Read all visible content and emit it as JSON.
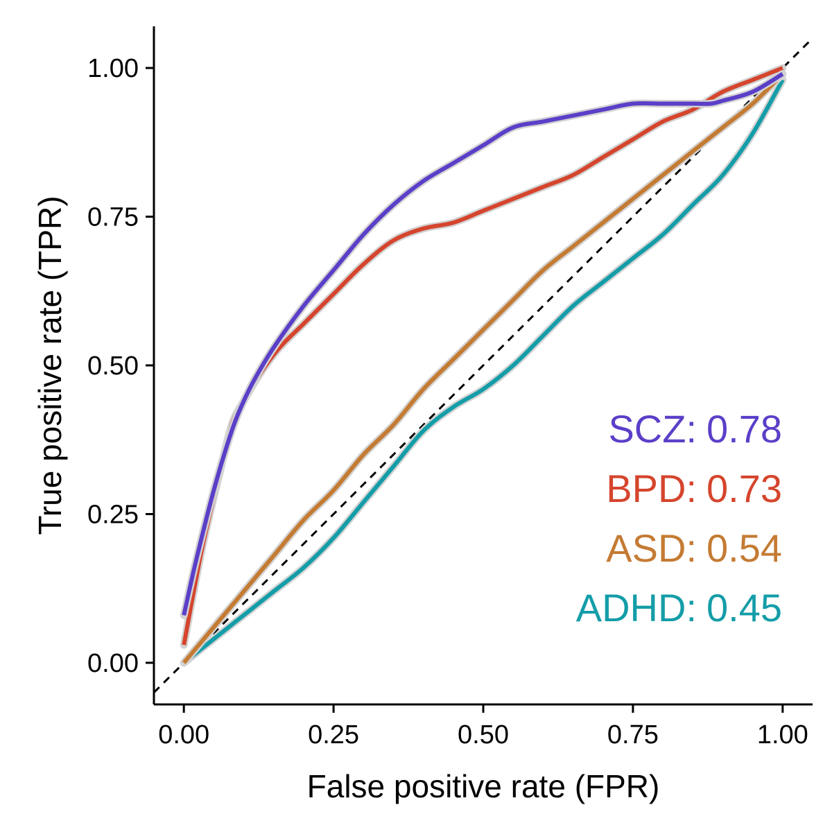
{
  "chart_data": {
    "type": "line",
    "xlabel": "False positive rate (FPR)",
    "ylabel": "True positive rate (TPR)",
    "xlim": [
      -0.05,
      1.05
    ],
    "ylim": [
      -0.07,
      1.07
    ],
    "x_ticks": [
      0,
      0.25,
      0.5,
      0.75,
      1
    ],
    "x_tick_labels": [
      "0.00",
      "0.25",
      "0.50",
      "0.75",
      "1.00"
    ],
    "y_ticks": [
      0,
      0.25,
      0.5,
      0.75,
      1
    ],
    "y_tick_labels": [
      "0.00",
      "0.25",
      "0.50",
      "0.75",
      "1.00"
    ],
    "grid": false,
    "reference_line": {
      "style": "dashed",
      "color": "#000000",
      "from": [
        -0.05,
        -0.05
      ],
      "to": [
        1.05,
        1.05
      ]
    },
    "legend_placement": "bottom-right",
    "series": [
      {
        "name": "SCZ",
        "auc_label": "0.78",
        "color": "#5B3FC8",
        "x": [
          0.0,
          0.02,
          0.05,
          0.08,
          0.1,
          0.12,
          0.15,
          0.2,
          0.25,
          0.3,
          0.35,
          0.4,
          0.45,
          0.5,
          0.55,
          0.6,
          0.65,
          0.7,
          0.75,
          0.8,
          0.85,
          0.88,
          0.9,
          0.95,
          1.0
        ],
        "y": [
          0.08,
          0.17,
          0.29,
          0.39,
          0.44,
          0.48,
          0.53,
          0.6,
          0.66,
          0.72,
          0.77,
          0.81,
          0.84,
          0.87,
          0.9,
          0.91,
          0.92,
          0.93,
          0.94,
          0.94,
          0.94,
          0.94,
          0.945,
          0.96,
          0.99
        ]
      },
      {
        "name": "BPD",
        "auc_label": "0.73",
        "color": "#D5452D",
        "x": [
          0.0,
          0.03,
          0.06,
          0.08,
          0.1,
          0.13,
          0.16,
          0.2,
          0.25,
          0.3,
          0.35,
          0.4,
          0.45,
          0.5,
          0.55,
          0.6,
          0.65,
          0.7,
          0.75,
          0.8,
          0.85,
          0.9,
          0.95,
          1.0
        ],
        "y": [
          0.03,
          0.19,
          0.32,
          0.4,
          0.44,
          0.49,
          0.53,
          0.57,
          0.62,
          0.67,
          0.71,
          0.73,
          0.74,
          0.76,
          0.78,
          0.8,
          0.82,
          0.85,
          0.88,
          0.91,
          0.93,
          0.96,
          0.98,
          1.0
        ]
      },
      {
        "name": "ASD",
        "auc_label": "0.54",
        "color": "#C47B33",
        "x": [
          0.0,
          0.05,
          0.1,
          0.15,
          0.2,
          0.25,
          0.3,
          0.35,
          0.4,
          0.45,
          0.5,
          0.55,
          0.6,
          0.65,
          0.7,
          0.75,
          0.8,
          0.85,
          0.9,
          0.95,
          1.0
        ],
        "y": [
          0.0,
          0.06,
          0.12,
          0.18,
          0.24,
          0.29,
          0.35,
          0.4,
          0.46,
          0.51,
          0.56,
          0.61,
          0.66,
          0.7,
          0.74,
          0.78,
          0.82,
          0.86,
          0.9,
          0.94,
          0.99
        ]
      },
      {
        "name": "ADHD",
        "auc_label": "0.45",
        "color": "#149DA8",
        "x": [
          0.0,
          0.05,
          0.1,
          0.15,
          0.2,
          0.25,
          0.3,
          0.35,
          0.4,
          0.45,
          0.5,
          0.55,
          0.6,
          0.65,
          0.7,
          0.75,
          0.8,
          0.85,
          0.9,
          0.95,
          1.0
        ],
        "y": [
          0.0,
          0.04,
          0.08,
          0.12,
          0.16,
          0.21,
          0.27,
          0.33,
          0.39,
          0.43,
          0.46,
          0.5,
          0.55,
          0.6,
          0.64,
          0.68,
          0.72,
          0.77,
          0.82,
          0.89,
          0.98
        ]
      }
    ]
  }
}
